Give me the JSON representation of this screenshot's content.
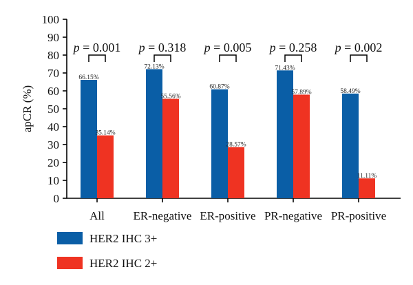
{
  "chart_data": {
    "type": "bar",
    "title": "",
    "xlabel": "",
    "ylabel": "apCR (%)",
    "ylim": [
      0,
      100
    ],
    "yticks": [
      0,
      10,
      20,
      30,
      40,
      50,
      60,
      70,
      80,
      90,
      100
    ],
    "categories": [
      "All",
      "ER-negative",
      "ER-positive",
      "PR-negative",
      "PR-positive"
    ],
    "series": [
      {
        "name": "HER2 IHC 3+",
        "color": "#0a5ea6",
        "values": [
          66.15,
          72.13,
          60.87,
          71.43,
          58.49
        ],
        "labels": [
          "66.15%",
          "72.13%",
          "60.87%",
          "71.43%",
          "58.49%"
        ]
      },
      {
        "name": "HER2 IHC 2+",
        "color": "#ef3322",
        "values": [
          35.14,
          55.56,
          28.57,
          57.89,
          11.11
        ],
        "labels": [
          "35.14%",
          "55.56%",
          "28.57%",
          "57.89%",
          "11.11%"
        ]
      }
    ],
    "annotations": [
      "p = 0.001",
      "p = 0.318",
      "p = 0.005",
      "p = 0.258",
      "p = 0.002"
    ],
    "legend_position": "bottom-left",
    "grid": false
  }
}
